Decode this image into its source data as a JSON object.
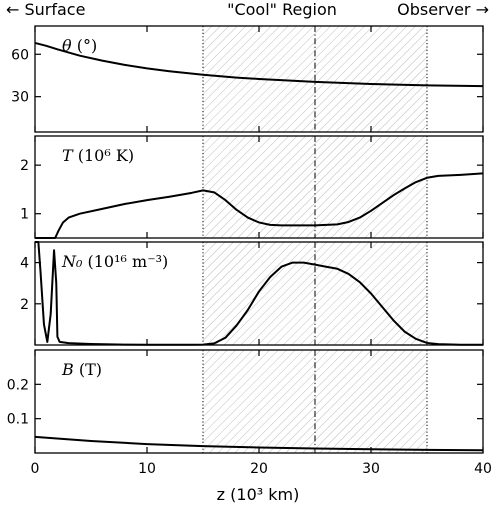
{
  "header": {
    "left": "← Surface",
    "center": "\"Cool\" Region",
    "right": "Observer →"
  },
  "chart_data": {
    "type": "line",
    "xlabel": "z (10³ km)",
    "xlim": [
      0,
      40
    ],
    "xticks": [
      0,
      10,
      20,
      30,
      40
    ],
    "region": {
      "x_start": 15,
      "x_end": 35,
      "center": 25,
      "style": "hatched"
    },
    "panels": [
      {
        "id": "theta",
        "label_symbol": "θ",
        "label_unit": " (°)",
        "ylim": [
          5,
          80
        ],
        "yticks": [
          30,
          60
        ],
        "tick_labels": [
          "30",
          "60"
        ],
        "series": {
          "x": [
            0,
            1,
            2,
            4,
            6,
            8,
            10,
            12,
            15,
            18,
            20,
            25,
            30,
            35,
            40
          ],
          "y": [
            68,
            66,
            63.5,
            59,
            55.5,
            52.5,
            50,
            48,
            45.5,
            43.5,
            42.5,
            40.5,
            39,
            38,
            37.5
          ]
        }
      },
      {
        "id": "T",
        "label_symbol": "T",
        "label_unit": " (10⁶ K)",
        "ylim": [
          0.5,
          2.6
        ],
        "yticks": [
          1,
          2
        ],
        "tick_labels": [
          "1",
          "2"
        ],
        "series": {
          "x": [
            0,
            1.8,
            2.1,
            2.5,
            3,
            4,
            6,
            8,
            10,
            12,
            14,
            15,
            16,
            17,
            18,
            19,
            20,
            21,
            22,
            23,
            25,
            27,
            28,
            29,
            30,
            31,
            32,
            33,
            34,
            35,
            36,
            38,
            40
          ],
          "y": [
            0.5,
            0.5,
            0.65,
            0.82,
            0.92,
            1.0,
            1.1,
            1.2,
            1.28,
            1.35,
            1.43,
            1.48,
            1.44,
            1.28,
            1.08,
            0.92,
            0.82,
            0.77,
            0.76,
            0.76,
            0.76,
            0.78,
            0.83,
            0.92,
            1.06,
            1.22,
            1.38,
            1.52,
            1.65,
            1.74,
            1.78,
            1.8,
            1.83
          ]
        }
      },
      {
        "id": "N0",
        "label_symbol": "N₀",
        "label_unit": " (10¹⁶ m⁻³)",
        "ylim": [
          0,
          5
        ],
        "yticks": [
          2,
          4
        ],
        "tick_labels": [
          "2",
          "4"
        ],
        "series": {
          "x": [
            0,
            0.3,
            0.5,
            0.8,
            1.1,
            1.4,
            1.7,
            1.9,
            2.0,
            2.2,
            3,
            5,
            8,
            10,
            12,
            14,
            15,
            16,
            17,
            18,
            19,
            20,
            21,
            22,
            23,
            24,
            25,
            26,
            27,
            28,
            29,
            30,
            31,
            32,
            33,
            34,
            35,
            36,
            38,
            40
          ],
          "y": [
            5.2,
            5.0,
            3.5,
            1.0,
            0.15,
            1.5,
            4.6,
            3.0,
            0.4,
            0.15,
            0.09,
            0.05,
            0.02,
            0.01,
            0.01,
            0.01,
            0.02,
            0.08,
            0.35,
            0.95,
            1.7,
            2.6,
            3.3,
            3.8,
            4.0,
            4.0,
            3.9,
            3.8,
            3.7,
            3.45,
            3.05,
            2.5,
            1.85,
            1.2,
            0.65,
            0.3,
            0.1,
            0.04,
            0.01,
            0.01
          ]
        }
      },
      {
        "id": "B",
        "label_symbol": "B",
        "label_unit": " (T)",
        "ylim": [
          0,
          0.3
        ],
        "yticks": [
          0.1,
          0.2
        ],
        "tick_labels": [
          "0.1",
          "0.2"
        ],
        "series": {
          "x": [
            0,
            5,
            10,
            15,
            20,
            25,
            30,
            35,
            40
          ],
          "y": [
            0.047,
            0.035,
            0.026,
            0.02,
            0.016,
            0.013,
            0.011,
            0.009,
            0.008
          ]
        }
      }
    ]
  }
}
